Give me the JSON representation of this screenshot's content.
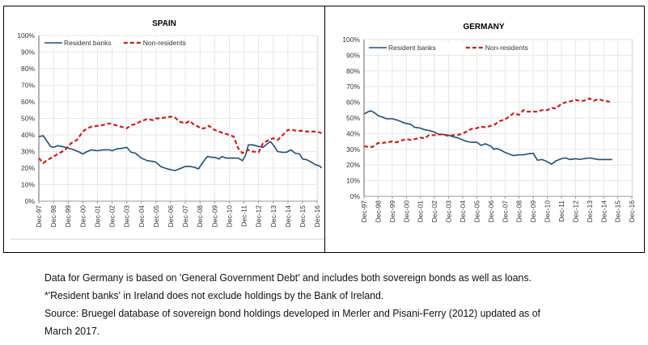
{
  "chart_data": [
    {
      "type": "line",
      "title": "SPAIN",
      "xlabel": "",
      "ylabel": "",
      "ylim": [
        0,
        100
      ],
      "yticks": [
        "0%",
        "10%",
        "20%",
        "30%",
        "40%",
        "50%",
        "60%",
        "70%",
        "80%",
        "90%",
        "100%"
      ],
      "xticks": [
        "Dec-97",
        "Dec-98",
        "Dec-99",
        "Dec-00",
        "Dec-01",
        "Dec-02",
        "Dec-03",
        "Dec-04",
        "Dec-05",
        "Dec-06",
        "Dec-07",
        "Dec-08",
        "Dec-09",
        "Dec-10",
        "Dec-11",
        "Dec-12",
        "Dec-13",
        "Dec-14",
        "Dec-15",
        "Dec-16"
      ],
      "xrange": [
        0,
        19.3
      ],
      "grid": true,
      "legend": "top-left",
      "series": [
        {
          "name": "Resident banks",
          "color": "#1f4e79",
          "style": "solid",
          "x": [
            0,
            0.3,
            0.5,
            0.8,
            1.0,
            1.3,
            1.6,
            2.0,
            2.4,
            2.8,
            3.0,
            3.3,
            3.6,
            4.0,
            4.4,
            4.8,
            5.0,
            5.3,
            5.7,
            6.0,
            6.3,
            6.6,
            7.0,
            7.4,
            7.8,
            8.0,
            8.3,
            8.6,
            9.0,
            9.3,
            9.6,
            10.0,
            10.3,
            10.6,
            10.9,
            11.2,
            11.5,
            11.8,
            12.0,
            12.3,
            12.5,
            12.8,
            13.0,
            13.3,
            13.6,
            13.9,
            14.1,
            14.3,
            14.6,
            15.0,
            15.3,
            15.5,
            15.8,
            16.0,
            16.3,
            16.6,
            16.9,
            17.2,
            17.5,
            17.8,
            18.0,
            18.3,
            18.6,
            18.9,
            19.2,
            19.3
          ],
          "values": [
            39,
            39.5,
            37,
            33,
            32.5,
            33.5,
            33,
            32,
            31,
            29.5,
            28.5,
            30,
            31,
            30.5,
            31,
            31,
            30.5,
            31.5,
            32,
            32.5,
            29.5,
            29,
            26,
            24.5,
            24,
            23.5,
            21,
            20,
            19,
            18.5,
            19.5,
            21,
            21,
            20.5,
            19.5,
            23.5,
            27,
            26.5,
            26.5,
            25.5,
            27,
            26,
            26,
            26,
            26,
            24.5,
            27.5,
            34,
            34,
            33,
            32.5,
            34,
            36,
            34,
            30,
            29.5,
            29.5,
            31,
            29,
            28.5,
            25.5,
            25,
            23.5,
            22,
            21,
            20
          ]
        },
        {
          "name": "Non-residents",
          "color": "#cc1f1f",
          "style": "dashed",
          "x": [
            0,
            0.3,
            0.6,
            1.0,
            1.4,
            1.8,
            2.2,
            2.6,
            3.0,
            3.3,
            3.6,
            4.0,
            4.4,
            4.8,
            5.2,
            5.6,
            6.0,
            6.3,
            6.6,
            7.0,
            7.4,
            7.8,
            8.0,
            8.3,
            8.6,
            9.0,
            9.3,
            9.6,
            10.0,
            10.3,
            10.6,
            10.9,
            11.0,
            11.3,
            11.6,
            12.0,
            12.3,
            12.6,
            13.0,
            13.3,
            13.6,
            13.9,
            14.1,
            14.3,
            14.6,
            15.0,
            15.3,
            15.6,
            16.0,
            16.3,
            16.6,
            17.0,
            17.3,
            17.6,
            18.0,
            18.3,
            18.6,
            19.0,
            19.3
          ],
          "values": [
            26,
            23,
            25,
            27,
            29,
            31,
            35,
            37,
            42,
            44,
            45,
            45.5,
            46,
            47,
            46,
            45,
            44,
            46,
            46.5,
            48.5,
            49.5,
            49,
            50,
            50,
            50.5,
            51,
            50.5,
            48,
            47,
            48.5,
            46,
            45,
            44,
            44,
            45.5,
            43,
            42,
            41,
            40,
            39,
            32,
            29,
            30,
            31,
            30,
            29.5,
            35,
            36.5,
            38,
            37,
            39.5,
            43,
            43,
            42.5,
            42.5,
            42,
            42,
            42,
            41
          ]
        }
      ]
    },
    {
      "type": "line",
      "title": "GERMANY",
      "xlabel": "",
      "ylabel": "",
      "ylim": [
        0,
        100
      ],
      "yticks": [
        "0%",
        "10%",
        "20%",
        "30%",
        "40%",
        "50%",
        "60%",
        "70%",
        "80%",
        "90%",
        "100%"
      ],
      "xticks": [
        "Dec-97",
        "Dec-98",
        "Dec-99",
        "Dec-00",
        "Dec-01",
        "Dec-02",
        "Dec-03",
        "Dec-04",
        "Dec-05",
        "Dec-06",
        "Dec-07",
        "Dec-08",
        "Dec-09",
        "Dec-10",
        "Dec-11",
        "Dec-12",
        "Dec-13",
        "Dec-14",
        "Dec-15",
        "Dec-16"
      ],
      "xrange": [
        0,
        19
      ],
      "grid": true,
      "legend": "top-left",
      "series": [
        {
          "name": "Resident banks",
          "color": "#1f4e79",
          "style": "solid",
          "x": [
            0,
            0.3,
            0.5,
            0.8,
            1.0,
            1.3,
            1.6,
            2.0,
            2.4,
            2.8,
            3.0,
            3.3,
            3.6,
            4.0,
            4.3,
            4.6,
            5.0,
            5.3,
            5.6,
            6.0,
            6.3,
            6.6,
            7.0,
            7.3,
            7.6,
            8.0,
            8.3,
            8.6,
            9.0,
            9.2,
            9.4,
            9.7,
            10.0,
            10.3,
            10.6,
            11.0,
            11.3,
            11.6,
            12.0,
            12.3,
            12.6,
            12.9,
            13.0,
            13.3,
            13.6,
            14.0,
            14.3,
            14.6,
            15.0,
            15.3,
            15.6,
            16.0,
            16.3,
            16.6,
            17.0,
            17.3,
            17.6
          ],
          "values": [
            52.5,
            54,
            54.5,
            53,
            51.5,
            50.5,
            49.5,
            49.5,
            48.5,
            47,
            46.5,
            46,
            44,
            43.5,
            42.5,
            42,
            41,
            39.5,
            39.5,
            39,
            38,
            37.5,
            36,
            35,
            34.5,
            34.5,
            32.5,
            33.5,
            32,
            30,
            30.5,
            29.5,
            28,
            27,
            26,
            26.5,
            26.5,
            27,
            27.5,
            23,
            23.5,
            22.5,
            22,
            20.5,
            22.5,
            24,
            24.5,
            23.5,
            24,
            23.5,
            24,
            24.5,
            24,
            23.5,
            23.5,
            23.5,
            23.5
          ]
        },
        {
          "name": "Non-residents",
          "color": "#cc1f1f",
          "style": "dashed",
          "x": [
            0,
            0.3,
            0.6,
            1.0,
            1.3,
            1.6,
            2.0,
            2.3,
            2.6,
            3.0,
            3.3,
            3.6,
            4.0,
            4.3,
            4.6,
            5.0,
            5.3,
            5.6,
            6.0,
            6.3,
            6.6,
            7.0,
            7.3,
            7.6,
            8.0,
            8.3,
            8.6,
            9.0,
            9.3,
            9.6,
            10.0,
            10.3,
            10.6,
            11.0,
            11.3,
            11.6,
            12.0,
            12.3,
            12.6,
            13.0,
            13.3,
            13.6,
            14.0,
            14.3,
            14.6,
            15.0,
            15.3,
            15.6,
            16.0,
            16.3,
            16.6,
            17.0,
            17.3,
            17.6
          ],
          "values": [
            32,
            31.5,
            31.5,
            34,
            34,
            34.5,
            35,
            34.5,
            35.5,
            36.5,
            36,
            36.5,
            37.5,
            37,
            39,
            39,
            39.5,
            39.5,
            38.5,
            39,
            39,
            40,
            41.5,
            43,
            43.5,
            44.5,
            44,
            45,
            46,
            48,
            49,
            51,
            53,
            52,
            55,
            54,
            54,
            54,
            55,
            55,
            56.5,
            56,
            59,
            60,
            60.5,
            61.5,
            61,
            61,
            62.5,
            61,
            62,
            61,
            60.5,
            60
          ]
        }
      ]
    }
  ],
  "notes": [
    "Data for Germany is based on 'General Government Debt' and includes both sovereign bonds as well as loans.",
    "*'Resident banks' in Ireland does not exclude holdings by the Bank of Ireland.",
    "Source: Bruegel database of sovereign bond holdings developed in Merler and Pisani-Ferry (2012) updated as of",
    "March 2017."
  ]
}
